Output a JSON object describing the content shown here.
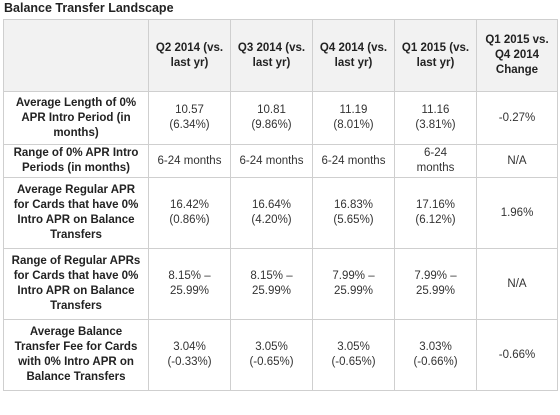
{
  "title": "Balance Transfer Landscape",
  "headers": [
    "Q2 2014 (vs. last yr)",
    "Q3 2014 (vs. last yr)",
    "Q4 2014 (vs. last yr)",
    "Q1 2015 (vs. last yr)",
    "Q1 2015 vs. Q4 2014 Change"
  ],
  "rows": [
    {
      "label": "Average Length of 0% APR Intro Period (in months)",
      "cells": [
        {
          "v": "10.57",
          "c": "(6.34%)"
        },
        {
          "v": "10.81",
          "c": "(9.86%)"
        },
        {
          "v": "11.19",
          "c": "(8.01%)"
        },
        {
          "v": "11.16",
          "c": "(3.81%)"
        },
        {
          "v": "-0.27%",
          "c": ""
        }
      ]
    },
    {
      "label": "Range of 0% APR Intro Periods (in months)",
      "cells": [
        {
          "v": "6-24 months",
          "c": ""
        },
        {
          "v": "6-24 months",
          "c": ""
        },
        {
          "v": "6-24 months",
          "c": ""
        },
        {
          "v": "6-24",
          "c": "months"
        },
        {
          "v": "N/A",
          "c": ""
        }
      ]
    },
    {
      "label": "Average Regular APR for Cards that have 0% Intro APR on Balance Transfers",
      "cells": [
        {
          "v": "16.42%",
          "c": "(0.86%)"
        },
        {
          "v": "16.64%",
          "c": "(4.20%)"
        },
        {
          "v": "16.83%",
          "c": "(5.65%)"
        },
        {
          "v": "17.16%",
          "c": "(6.12%)"
        },
        {
          "v": "1.96%",
          "c": ""
        }
      ]
    },
    {
      "label": "Range of Regular APRs for Cards that have 0% Intro APR on Balance Transfers",
      "cells": [
        {
          "v": "8.15% –",
          "c": "25.99%"
        },
        {
          "v": "8.15% –",
          "c": "25.99%"
        },
        {
          "v": "7.99% –",
          "c": "25.99%"
        },
        {
          "v": "7.99% –",
          "c": "25.99%"
        },
        {
          "v": "N/A",
          "c": ""
        }
      ]
    },
    {
      "label": "Average Balance Transfer Fee for Cards with 0% Intro APR on Balance Transfers",
      "cells": [
        {
          "v": "3.04%",
          "c": "(-0.33%)"
        },
        {
          "v": "3.05%",
          "c": "(-0.65%)"
        },
        {
          "v": "3.05%",
          "c": "(-0.65%)"
        },
        {
          "v": "3.03%",
          "c": "(-0.66%)"
        },
        {
          "v": "-0.66%",
          "c": ""
        }
      ]
    }
  ]
}
